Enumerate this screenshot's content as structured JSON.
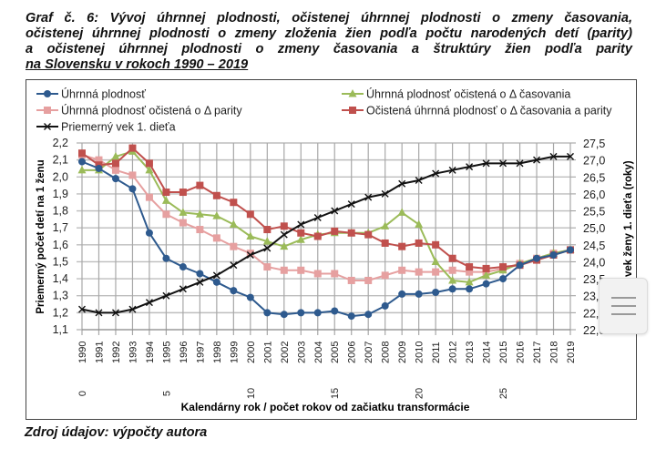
{
  "title_lines": [
    "Graf č. 6: Vývoj úhrnnej plodnosti, očistenej úhrnnej plodnosti o zmeny časovania,",
    "očistenej úhrnnej plodnosti o zmeny zloženia žien podľa počtu narodených detí (parity)",
    "a očistenej úhrnnej plodnosti o zmeny časovania a štruktúry žien podľa parity",
    "na Slovensku v rokoch 1990 – 2019"
  ],
  "source": "Zdroj údajov: výpočty autora",
  "overlay": {
    "menu_icon": "hamburger-menu-icon"
  },
  "chart_data": {
    "type": "line",
    "title": "Graf č. 6: Vývoj úhrnnej plodnosti, očistenej úhrnnej plodnosti o zmeny časovania, očistenej úhrnnej plodnosti o zmeny zloženia žien podľa počtu narodených detí (parity) a očistenej úhrnnej plodnosti o zmeny časovania a štruktúry žien podľa parity na Slovensku v rokoch 1990 – 2019",
    "xlabel": "Kalendárny rok / počet rokov od začiatku transformácie",
    "ylabel": "Priemerný počet detí na 1 ženu",
    "y2label": "Priemerný vek ženy 1. dieťa (roky)",
    "y2label_visible": "ý vek ženy 1. dieťa (roky)",
    "ylim": [
      1.1,
      2.2
    ],
    "y2lim": [
      22.0,
      27.5
    ],
    "yticks": [
      "1,1",
      "1,2",
      "1,3",
      "1,4",
      "1,5",
      "1,6",
      "1,7",
      "1,8",
      "1,9",
      "2,0",
      "2,1",
      "2,2"
    ],
    "y2ticks": [
      "22,0",
      "22,5",
      "23,0",
      "23,5",
      "24,0",
      "24,5",
      "25,0",
      "25,5",
      "26,0",
      "26,5",
      "27,0",
      "27,5"
    ],
    "grid": true,
    "legend_position": "top",
    "categories": [
      "1990",
      "1991",
      "1992",
      "1993",
      "1994",
      "1995",
      "1996",
      "1997",
      "1998",
      "1999",
      "2000",
      "2001",
      "2002",
      "2003",
      "2004",
      "2005",
      "2006",
      "2007",
      "2008",
      "2009",
      "2010",
      "2011",
      "2012",
      "2013",
      "2014",
      "2015",
      "2016",
      "2017",
      "2018",
      "2019"
    ],
    "secondary_categories": [
      {
        "index": 0,
        "label": "0"
      },
      {
        "index": 5,
        "label": "5"
      },
      {
        "index": 10,
        "label": "10"
      },
      {
        "index": 15,
        "label": "15"
      },
      {
        "index": 20,
        "label": "20"
      },
      {
        "index": 25,
        "label": "25"
      }
    ],
    "series": [
      {
        "name": "Úhrnná plodnosť",
        "axis": "left",
        "color": "#2e5a8e",
        "marker": "circle",
        "values": [
          2.09,
          2.05,
          1.99,
          1.93,
          1.67,
          1.52,
          1.47,
          1.43,
          1.38,
          1.33,
          1.29,
          1.2,
          1.19,
          1.2,
          1.2,
          1.21,
          1.18,
          1.19,
          1.24,
          1.31,
          1.31,
          1.32,
          1.34,
          1.34,
          1.37,
          1.4,
          1.48,
          1.52,
          1.54,
          1.57
        ]
      },
      {
        "name": "Úhrnná plodnosť očistená o Δ časovania",
        "axis": "left",
        "color": "#9bbb59",
        "marker": "triangle",
        "values": [
          2.04,
          2.04,
          2.12,
          2.15,
          2.04,
          1.86,
          1.79,
          1.78,
          1.77,
          1.72,
          1.65,
          1.62,
          1.59,
          1.63,
          1.66,
          1.67,
          1.67,
          1.67,
          1.71,
          1.79,
          1.72,
          1.5,
          1.39,
          1.38,
          1.42,
          1.45,
          1.49,
          1.52,
          1.55,
          1.57
        ]
      },
      {
        "name": "Úhrnná plodnosť očistená o Δ parity",
        "axis": "left",
        "color": "#e6a0a0",
        "marker": "square",
        "values": [
          2.13,
          2.1,
          2.04,
          2.01,
          1.88,
          1.78,
          1.73,
          1.69,
          1.64,
          1.59,
          1.55,
          1.47,
          1.45,
          1.45,
          1.43,
          1.43,
          1.39,
          1.39,
          1.42,
          1.45,
          1.44,
          1.44,
          1.45,
          1.44,
          1.44,
          1.46,
          1.49,
          1.52,
          1.55,
          1.57
        ]
      },
      {
        "name": "Očistená úhrnná plodnosť o Δ časovania a parity",
        "axis": "left",
        "color": "#c0504d",
        "marker": "square",
        "values": [
          2.14,
          2.07,
          2.08,
          2.17,
          2.08,
          1.91,
          1.91,
          1.95,
          1.89,
          1.85,
          1.78,
          1.69,
          1.71,
          1.67,
          1.65,
          1.68,
          1.67,
          1.66,
          1.61,
          1.59,
          1.61,
          1.6,
          1.52,
          1.47,
          1.46,
          1.47,
          1.48,
          1.51,
          1.54,
          1.57
        ]
      },
      {
        "name": "Priemerný vek 1. dieťa",
        "axis": "right",
        "color": "#111111",
        "marker": "x",
        "values": [
          22.6,
          22.5,
          22.5,
          22.6,
          22.8,
          23.0,
          23.2,
          23.4,
          23.6,
          23.9,
          24.2,
          24.4,
          24.8,
          25.1,
          25.3,
          25.5,
          25.7,
          25.9,
          26.0,
          26.3,
          26.4,
          26.6,
          26.7,
          26.8,
          26.9,
          26.9,
          26.9,
          27.0,
          27.1,
          27.1
        ]
      }
    ],
    "legend_labels": [
      "Úhrnná plodnosť",
      "Úhrnná plodnosť očistená o Δ časovania",
      "Úhrnná plodnosť očistená o Δ parity",
      "Očistená úhrnná plodnosť o Δ časovania a parity",
      "Priemerný vek 1. dieťa"
    ]
  }
}
